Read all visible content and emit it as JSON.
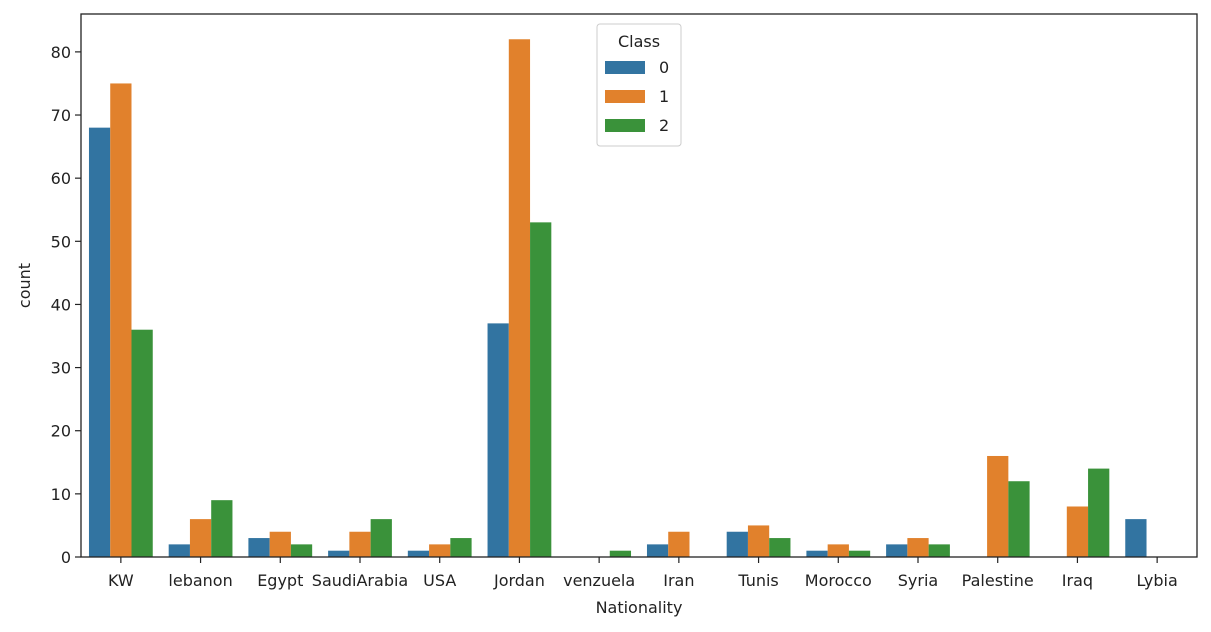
{
  "chart_data": {
    "type": "bar",
    "xlabel": "Nationality",
    "ylabel": "count",
    "ylim": [
      0,
      86
    ],
    "yticks": [
      0,
      10,
      20,
      30,
      40,
      50,
      60,
      70,
      80
    ],
    "grid": false,
    "legend": {
      "title": "Class",
      "placement": "top-center"
    },
    "categories": [
      "KW",
      "lebanon",
      "Egypt",
      "SaudiArabia",
      "USA",
      "Jordan",
      "venzuela",
      "Iran",
      "Tunis",
      "Morocco",
      "Syria",
      "Palestine",
      "Iraq",
      "Lybia"
    ],
    "series": [
      {
        "name": "0",
        "color": "#3274a1",
        "values": [
          68,
          2,
          3,
          1,
          1,
          37,
          0,
          2,
          4,
          1,
          2,
          0,
          0,
          6
        ]
      },
      {
        "name": "1",
        "color": "#e1812c",
        "values": [
          75,
          6,
          4,
          4,
          2,
          82,
          0,
          4,
          5,
          2,
          3,
          16,
          8,
          0
        ]
      },
      {
        "name": "2",
        "color": "#3a923a",
        "values": [
          36,
          9,
          2,
          6,
          3,
          53,
          1,
          0,
          3,
          1,
          2,
          12,
          14,
          0
        ]
      }
    ]
  }
}
